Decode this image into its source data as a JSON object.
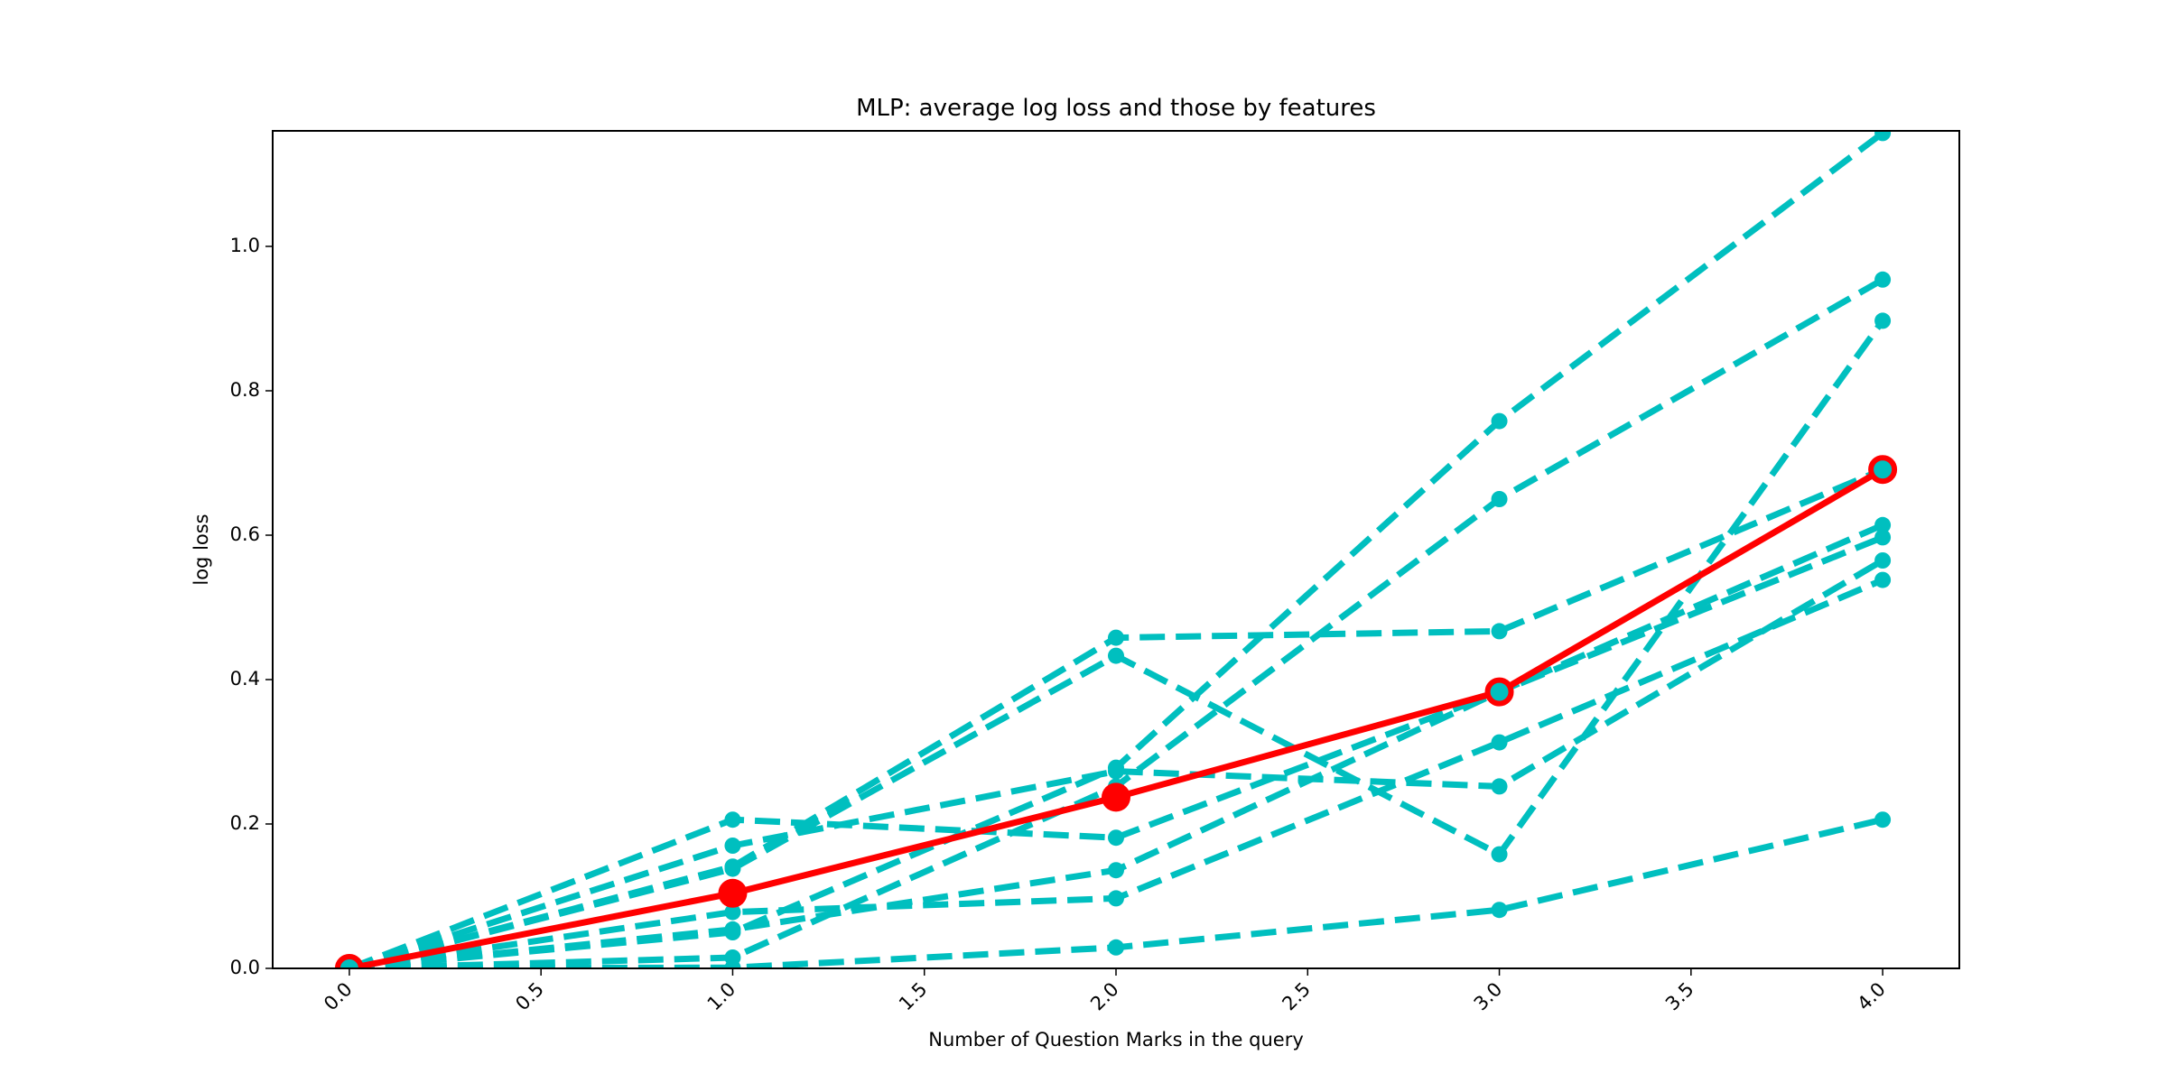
{
  "chart_data": {
    "type": "line",
    "title": "MLP: average log loss and those by features",
    "xlabel": "Number of Question Marks in the query",
    "ylabel": "log loss",
    "xlim": [
      -0.2,
      4.2
    ],
    "ylim": [
      0.0,
      1.16
    ],
    "xticks": [
      "0.0",
      "0.5",
      "1.0",
      "1.5",
      "2.0",
      "2.5",
      "3.0",
      "3.5",
      "4.0"
    ],
    "yticks": [
      "0.0",
      "0.2",
      "0.4",
      "0.6",
      "0.8",
      "1.0"
    ],
    "grid": false,
    "legend": "none",
    "x": [
      0,
      1,
      2,
      3,
      4
    ],
    "average": {
      "color": "#ff0000",
      "values": [
        0.0,
        0.104,
        0.237,
        0.383,
        0.691
      ]
    },
    "feature_color": "#00bfbf",
    "series": [
      {
        "values": [
          0.0,
          0.141,
          0.458,
          0.467,
          0.691
        ]
      },
      {
        "values": [
          0.0,
          0.138,
          0.433,
          0.158,
          0.897
        ]
      },
      {
        "values": [
          0.0,
          0.206,
          0.181,
          0.383,
          0.597
        ]
      },
      {
        "values": [
          0.0,
          0.17,
          0.273,
          0.252,
          0.565
        ]
      },
      {
        "values": [
          0.0,
          0.078,
          0.097,
          0.313,
          0.538
        ]
      },
      {
        "values": [
          0.0,
          0.054,
          0.136,
          0.383,
          0.614
        ]
      },
      {
        "values": [
          0.0,
          0.015,
          0.252,
          0.65,
          0.954
        ]
      },
      {
        "values": [
          0.0,
          0.05,
          0.278,
          0.758,
          1.157
        ]
      },
      {
        "values": [
          0.0,
          0.001,
          0.029,
          0.081,
          0.206
        ]
      }
    ]
  }
}
